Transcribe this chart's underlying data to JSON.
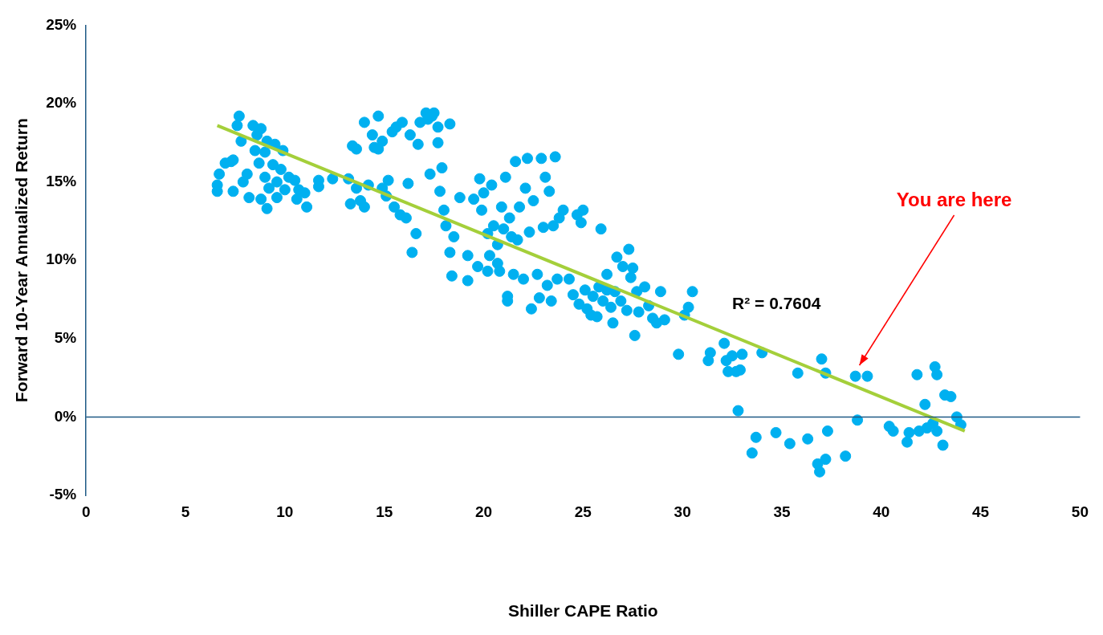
{
  "chart_data": {
    "type": "scatter",
    "xlabel": "Shiller CAPE Ratio",
    "ylabel": "Forward 10-Year Annualized Return",
    "xlim": [
      0,
      50
    ],
    "xticks": [
      0,
      5,
      10,
      15,
      20,
      25,
      30,
      35,
      40,
      45,
      50
    ],
    "ylim": [
      -5,
      25
    ],
    "yticks": [
      {
        "value": -5,
        "label": "-5%"
      },
      {
        "value": 0,
        "label": "0%"
      },
      {
        "value": 5,
        "label": "5%"
      },
      {
        "value": 10,
        "label": "10%"
      },
      {
        "value": 15,
        "label": "15%"
      },
      {
        "value": 20,
        "label": "20%"
      },
      {
        "value": 25,
        "label": "25%"
      }
    ],
    "grid": false,
    "legend": false,
    "ref_lines": [
      {
        "axis": "y",
        "value": 0,
        "color": "#1f5a85"
      }
    ],
    "annotations": [
      "R² = 0.7604",
      "You are here"
    ],
    "series": [
      {
        "type": "scatter",
        "marker": "circle",
        "color": "#00b0f0",
        "x": [
          6.6,
          6.6,
          6.7,
          7.0,
          7.3,
          7.4,
          7.4,
          7.6,
          7.7,
          7.8,
          7.9,
          8.1,
          8.2,
          8.4,
          8.5,
          8.6,
          8.7,
          8.8,
          8.8,
          9.0,
          9.0,
          9.1,
          9.1,
          9.2,
          9.4,
          9.5,
          9.6,
          9.6,
          9.8,
          9.9,
          10.0,
          10.2,
          10.5,
          10.6,
          10.7,
          11.0,
          11.1,
          11.7,
          11.7,
          12.4,
          13.2,
          13.4,
          13.3,
          13.6,
          13.6,
          13.8,
          14.0,
          14.0,
          14.2,
          14.4,
          14.5,
          14.7,
          14.7,
          14.9,
          14.9,
          15.1,
          15.2,
          15.4,
          15.5,
          15.6,
          15.8,
          15.9,
          16.1,
          16.2,
          16.3,
          16.4,
          16.6,
          16.7,
          16.8,
          17.1,
          17.2,
          17.3,
          17.4,
          17.5,
          17.7,
          17.7,
          17.8,
          17.9,
          18.0,
          18.1,
          18.3,
          18.3,
          18.4,
          18.5,
          18.8,
          19.2,
          19.2,
          19.5,
          19.7,
          19.8,
          19.9,
          20.0,
          20.2,
          20.2,
          20.3,
          20.4,
          20.5,
          20.7,
          20.7,
          20.8,
          20.9,
          21.0,
          21.1,
          21.2,
          21.2,
          21.3,
          21.4,
          21.5,
          21.6,
          21.7,
          21.8,
          22.0,
          22.1,
          22.2,
          22.3,
          22.4,
          22.5,
          22.7,
          22.8,
          22.9,
          23.0,
          23.1,
          23.2,
          23.3,
          23.4,
          23.5,
          23.6,
          23.7,
          23.8,
          24.0,
          24.3,
          24.5,
          24.7,
          24.8,
          24.9,
          25.0,
          25.1,
          25.2,
          25.4,
          25.5,
          25.7,
          25.8,
          25.9,
          26.0,
          26.2,
          26.2,
          26.4,
          26.5,
          26.6,
          26.7,
          26.9,
          27.0,
          27.2,
          27.3,
          27.4,
          27.5,
          27.6,
          27.7,
          27.8,
          28.1,
          28.3,
          28.5,
          28.7,
          28.9,
          29.1,
          29.8,
          30.1,
          30.3,
          30.5,
          31.3,
          31.4,
          32.1,
          32.2,
          32.3,
          32.5,
          32.7,
          32.8,
          32.9,
          33.0,
          33.5,
          33.7,
          34.0,
          34.7,
          35.4,
          35.8,
          36.3,
          36.8,
          36.9,
          37.0,
          37.2,
          37.2,
          37.3,
          38.2,
          38.8,
          38.7,
          39.3,
          40.4,
          40.6,
          41.3,
          41.4,
          41.8,
          41.9,
          42.2,
          42.3,
          42.6,
          42.7,
          42.8,
          42.8,
          43.1,
          43.2,
          43.5,
          43.8,
          44.0
        ],
        "values": [
          14.8,
          14.4,
          15.5,
          16.2,
          16.3,
          16.4,
          14.4,
          18.6,
          19.2,
          17.6,
          15.0,
          15.5,
          14.0,
          18.6,
          17.0,
          18.0,
          16.2,
          18.4,
          13.9,
          16.9,
          15.3,
          13.3,
          17.6,
          14.6,
          16.1,
          17.4,
          15.0,
          14.0,
          15.8,
          17.0,
          14.5,
          15.3,
          15.1,
          13.9,
          14.5,
          14.3,
          13.4,
          15.1,
          14.7,
          15.2,
          15.2,
          17.3,
          13.6,
          17.1,
          14.6,
          13.8,
          18.8,
          13.4,
          14.8,
          18.0,
          17.2,
          19.2,
          17.1,
          14.6,
          17.6,
          14.1,
          15.1,
          18.2,
          13.4,
          18.5,
          12.9,
          18.8,
          12.7,
          14.9,
          18.0,
          10.5,
          11.7,
          17.4,
          18.8,
          19.4,
          19.0,
          15.5,
          19.2,
          19.4,
          17.5,
          18.5,
          14.4,
          15.9,
          13.2,
          12.2,
          10.5,
          18.7,
          9.0,
          11.5,
          14.0,
          8.7,
          10.3,
          13.9,
          9.6,
          15.2,
          13.2,
          14.3,
          11.7,
          9.3,
          10.3,
          14.8,
          12.2,
          11.0,
          9.8,
          9.3,
          13.4,
          12.0,
          15.3,
          7.7,
          7.4,
          12.7,
          11.5,
          9.1,
          16.3,
          11.3,
          13.4,
          8.8,
          14.6,
          16.5,
          11.8,
          6.9,
          13.8,
          9.1,
          7.6,
          16.5,
          12.1,
          15.3,
          8.4,
          14.4,
          7.4,
          12.2,
          16.6,
          8.8,
          12.7,
          13.2,
          8.8,
          7.8,
          12.9,
          7.2,
          12.4,
          13.2,
          8.1,
          6.9,
          6.5,
          7.7,
          6.4,
          8.3,
          12.0,
          7.4,
          9.1,
          8.1,
          7.0,
          6.0,
          8.0,
          10.2,
          7.4,
          9.6,
          6.8,
          10.7,
          8.9,
          9.5,
          5.2,
          8.0,
          6.7,
          8.3,
          7.1,
          6.3,
          6.0,
          8.0,
          6.2,
          4.0,
          6.5,
          7.0,
          8.0,
          3.6,
          4.1,
          4.7,
          3.6,
          2.9,
          3.9,
          2.9,
          0.4,
          3.0,
          4.0,
          -2.3,
          -1.3,
          4.1,
          -1.0,
          -1.7,
          2.8,
          -1.4,
          -3.0,
          -3.5,
          3.7,
          2.8,
          -2.7,
          -0.9,
          -2.5,
          -0.2,
          2.6,
          2.6,
          -0.6,
          -0.9,
          -1.6,
          -1.0,
          2.7,
          -0.9,
          0.8,
          -0.7,
          -0.4,
          3.2,
          2.7,
          -0.9,
          -1.8,
          1.4,
          1.3,
          0.0,
          -0.5
        ]
      },
      {
        "type": "line",
        "marker": "none",
        "color": "#a4cf3a",
        "x": [
          6.6,
          44.2
        ],
        "values": [
          18.6,
          -0.9
        ]
      }
    ]
  }
}
